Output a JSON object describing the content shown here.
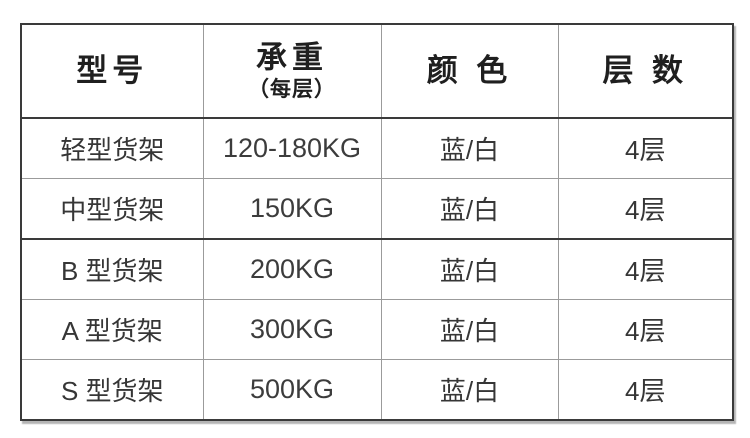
{
  "table": {
    "headers": [
      {
        "label": "型号",
        "sub": ""
      },
      {
        "label": "承重",
        "sub": "（每层）"
      },
      {
        "label": "颜 色",
        "sub": ""
      },
      {
        "label": "层 数",
        "sub": ""
      }
    ],
    "rows": [
      {
        "model": "轻型货架",
        "capacity": "120-180KG",
        "color": "蓝/白",
        "layers": "4层"
      },
      {
        "model": "中型货架",
        "capacity": "150KG",
        "color": "蓝/白",
        "layers": "4层"
      },
      {
        "model": "B 型货架",
        "capacity": "200KG",
        "color": "蓝/白",
        "layers": "4层"
      },
      {
        "model": "A 型货架",
        "capacity": "300KG",
        "color": "蓝/白",
        "layers": "4层"
      },
      {
        "model": "S 型货架",
        "capacity": "500KG",
        "color": "蓝/白",
        "layers": "4层"
      }
    ],
    "colors": {
      "outer_border": "#3a3a3a",
      "inner_border": "#9b9b9b",
      "header_text": "#1f1f1f",
      "body_text": "#363636",
      "background": "#ffffff"
    }
  }
}
